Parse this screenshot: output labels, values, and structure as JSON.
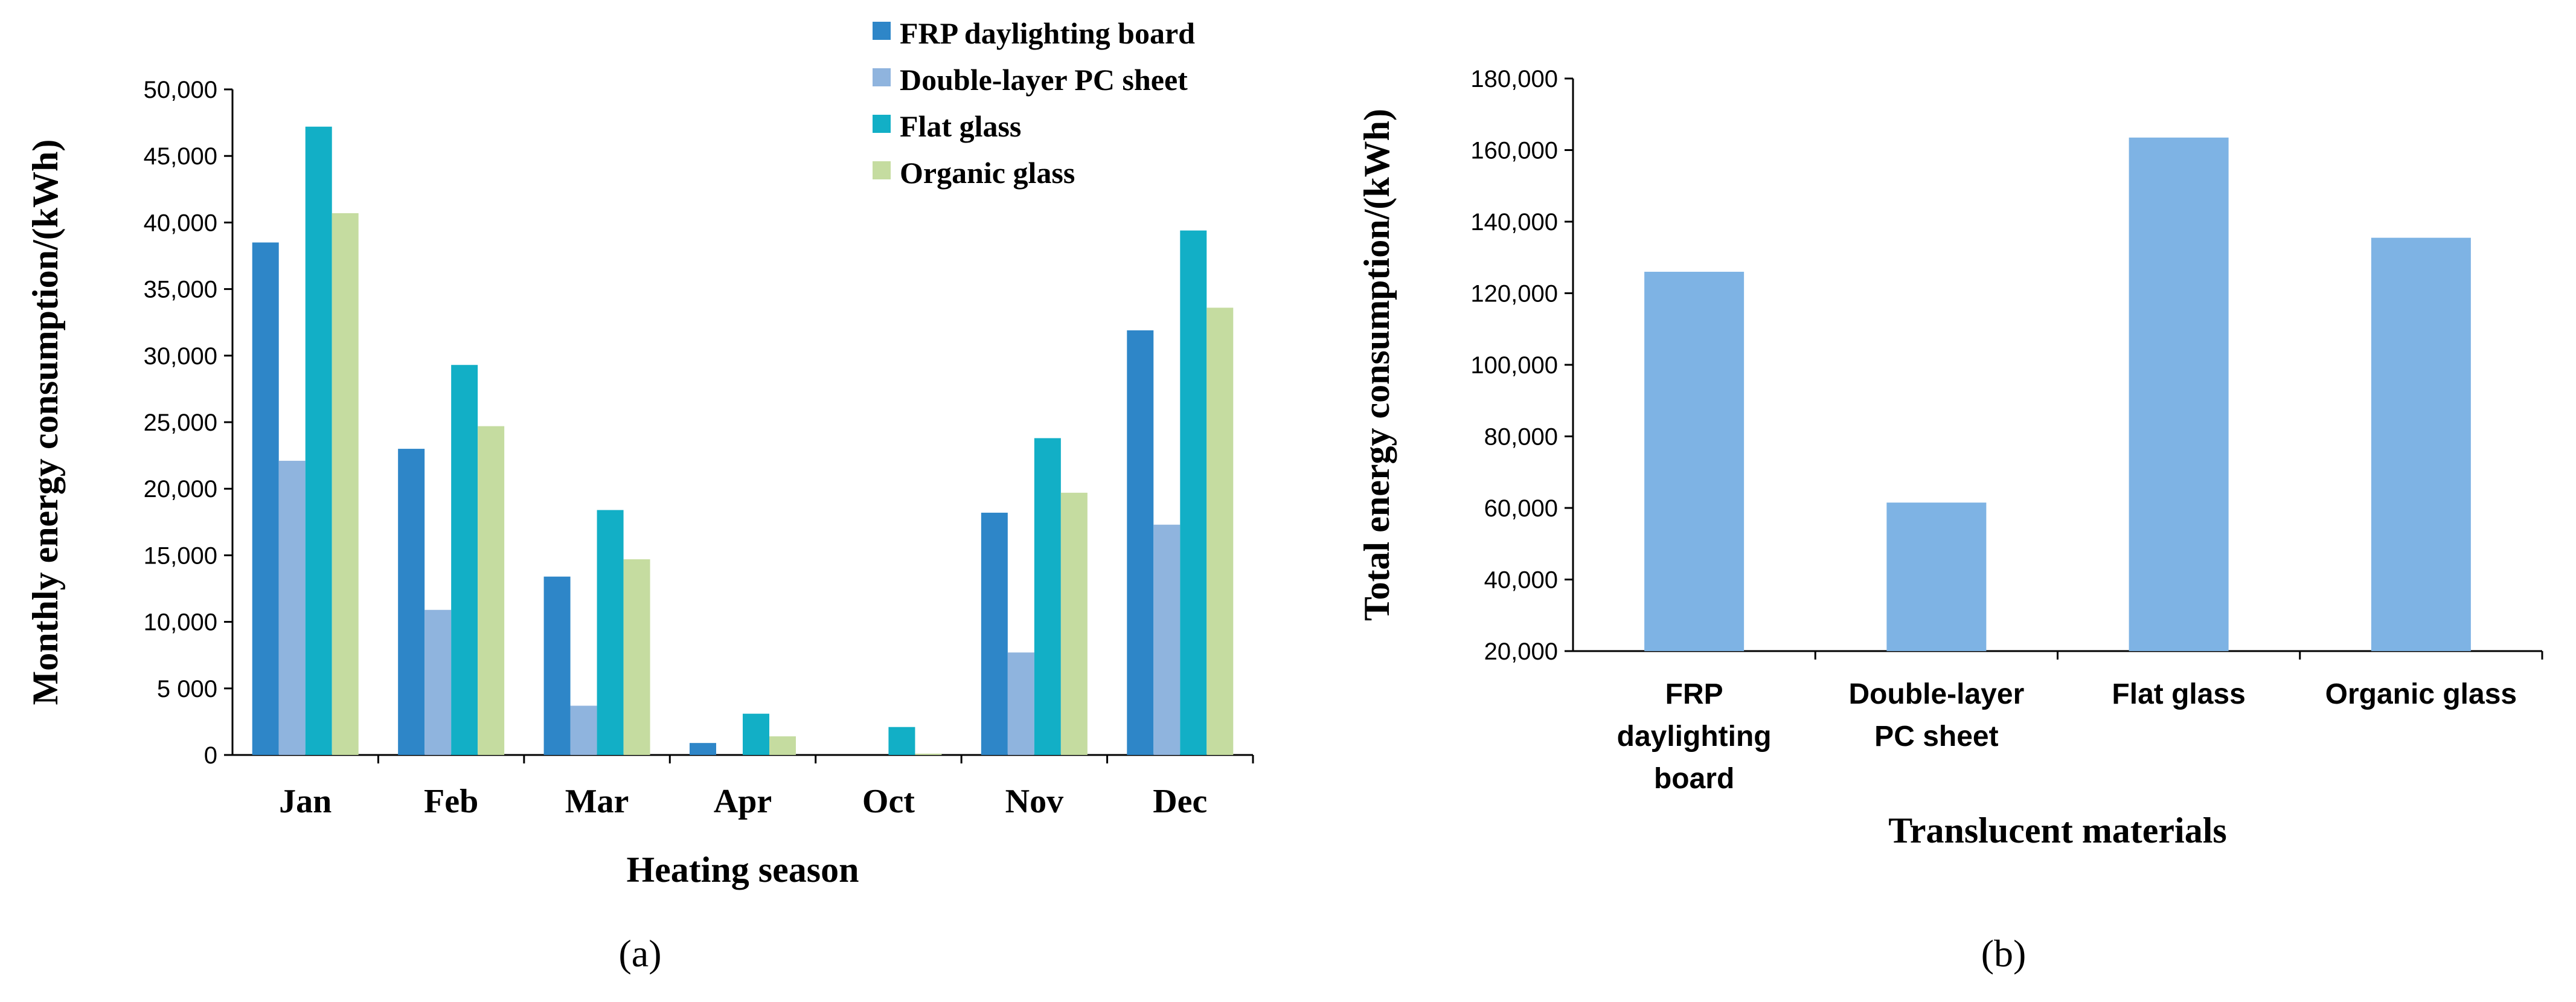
{
  "chart_data": [
    {
      "type": "bar",
      "panel_label": "(a)",
      "xlabel": "Heating season",
      "ylabel": "Monthly energy consumption/(kWh)",
      "categories": [
        "Jan",
        "Feb",
        "Mar",
        "Apr",
        "Oct",
        "Nov",
        "Dec"
      ],
      "ylim": [
        0,
        50000
      ],
      "yticks": [
        "0",
        "5 000",
        "10,000",
        "15,000",
        "20,000",
        "25,000",
        "30,000",
        "35,000",
        "40,000",
        "45,000",
        "50,000"
      ],
      "legend_position": "top-right",
      "series": [
        {
          "name": "FRP daylighting board",
          "color": "#2E86C8",
          "values": [
            38500,
            23000,
            13400,
            900,
            0,
            18200,
            31900
          ]
        },
        {
          "name": "Double-layer PC sheet",
          "color": "#8FB4DE",
          "values": [
            22100,
            10900,
            3700,
            0,
            0,
            7700,
            17300
          ]
        },
        {
          "name": "Flat glass",
          "color": "#12AFC6",
          "values": [
            47200,
            29300,
            18400,
            3100,
            2100,
            23800,
            39400
          ]
        },
        {
          "name": "Organic glass",
          "color": "#C5DCA0",
          "values": [
            40700,
            24700,
            14700,
            1400,
            100,
            19700,
            33600
          ]
        }
      ]
    },
    {
      "type": "bar",
      "panel_label": "(b)",
      "xlabel": "Translucent materials",
      "ylabel": "Total energy consumption/(kWh)",
      "categories": [
        [
          "FRP",
          "daylighting",
          "board"
        ],
        [
          "Double-layer",
          "PC sheet"
        ],
        [
          "Flat glass"
        ],
        [
          "Organic glass"
        ]
      ],
      "ylim": [
        20000,
        180000
      ],
      "yticks": [
        "20,000",
        "40,000",
        "60,000",
        "80,000",
        "100,000",
        "120,000",
        "140,000",
        "160,000",
        "180,000"
      ],
      "color": "#7EB3E4",
      "values": [
        126000,
        61500,
        163500,
        135500
      ]
    }
  ]
}
